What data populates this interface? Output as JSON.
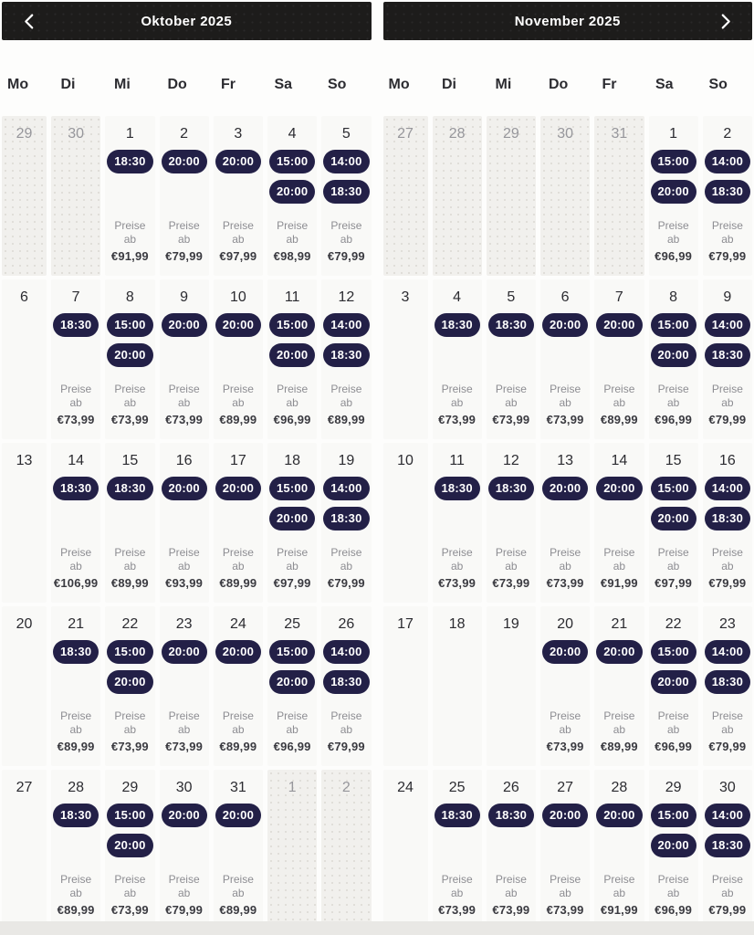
{
  "price_label": "Preise ab",
  "colors": {
    "page_bg": "#fdfdfc",
    "header_bg": "#1d1c1b",
    "header_text": "#ffffff",
    "cell_bg": "#f9f9f7",
    "cell_muted_bg": "#f1f0ed",
    "dot_color": "#dedcd7",
    "pill_bg": "#232047",
    "pill_text": "#ffffff",
    "day_text": "#2c2c31",
    "day_muted_text": "#96969b",
    "price_label_text": "#8d8d92",
    "price_text": "#3a3a40",
    "footer_strip": "#e9e8e5"
  },
  "months": [
    {
      "title": "Oktober 2025",
      "nav": "prev",
      "weekdays": [
        "Mo",
        "Di",
        "Mi",
        "Do",
        "Fr",
        "Sa",
        "So"
      ],
      "weeks": [
        [
          {
            "day": "29",
            "muted": true
          },
          {
            "day": "30",
            "muted": true
          },
          {
            "day": "1",
            "times": [
              "18:30"
            ],
            "price": "€91,99"
          },
          {
            "day": "2",
            "times": [
              "20:00"
            ],
            "price": "€79,99"
          },
          {
            "day": "3",
            "times": [
              "20:00"
            ],
            "price": "€97,99"
          },
          {
            "day": "4",
            "times": [
              "15:00",
              "20:00"
            ],
            "price": "€98,99"
          },
          {
            "day": "5",
            "times": [
              "14:00",
              "18:30"
            ],
            "price": "€79,99"
          }
        ],
        [
          {
            "day": "6"
          },
          {
            "day": "7",
            "times": [
              "18:30"
            ],
            "price": "€73,99"
          },
          {
            "day": "8",
            "times": [
              "15:00",
              "20:00"
            ],
            "price": "€73,99"
          },
          {
            "day": "9",
            "times": [
              "20:00"
            ],
            "price": "€73,99"
          },
          {
            "day": "10",
            "times": [
              "20:00"
            ],
            "price": "€89,99"
          },
          {
            "day": "11",
            "times": [
              "15:00",
              "20:00"
            ],
            "price": "€96,99"
          },
          {
            "day": "12",
            "times": [
              "14:00",
              "18:30"
            ],
            "price": "€89,99"
          }
        ],
        [
          {
            "day": "13"
          },
          {
            "day": "14",
            "times": [
              "18:30"
            ],
            "price": "€106,99"
          },
          {
            "day": "15",
            "times": [
              "18:30"
            ],
            "price": "€89,99"
          },
          {
            "day": "16",
            "times": [
              "20:00"
            ],
            "price": "€93,99"
          },
          {
            "day": "17",
            "times": [
              "20:00"
            ],
            "price": "€89,99"
          },
          {
            "day": "18",
            "times": [
              "15:00",
              "20:00"
            ],
            "price": "€97,99"
          },
          {
            "day": "19",
            "times": [
              "14:00",
              "18:30"
            ],
            "price": "€79,99"
          }
        ],
        [
          {
            "day": "20"
          },
          {
            "day": "21",
            "times": [
              "18:30"
            ],
            "price": "€89,99"
          },
          {
            "day": "22",
            "times": [
              "15:00",
              "20:00"
            ],
            "price": "€73,99"
          },
          {
            "day": "23",
            "times": [
              "20:00"
            ],
            "price": "€73,99"
          },
          {
            "day": "24",
            "times": [
              "20:00"
            ],
            "price": "€89,99"
          },
          {
            "day": "25",
            "times": [
              "15:00",
              "20:00"
            ],
            "price": "€96,99"
          },
          {
            "day": "26",
            "times": [
              "14:00",
              "18:30"
            ],
            "price": "€79,99"
          }
        ],
        [
          {
            "day": "27"
          },
          {
            "day": "28",
            "times": [
              "18:30"
            ],
            "price": "€89,99"
          },
          {
            "day": "29",
            "times": [
              "15:00",
              "20:00"
            ],
            "price": "€73,99"
          },
          {
            "day": "30",
            "times": [
              "20:00"
            ],
            "price": "€79,99"
          },
          {
            "day": "31",
            "times": [
              "20:00"
            ],
            "price": "€89,99"
          },
          {
            "day": "1",
            "muted": true
          },
          {
            "day": "2",
            "muted": true
          }
        ]
      ]
    },
    {
      "title": "November 2025",
      "nav": "next",
      "weekdays": [
        "Mo",
        "Di",
        "Mi",
        "Do",
        "Fr",
        "Sa",
        "So"
      ],
      "weeks": [
        [
          {
            "day": "27",
            "muted": true
          },
          {
            "day": "28",
            "muted": true
          },
          {
            "day": "29",
            "muted": true
          },
          {
            "day": "30",
            "muted": true
          },
          {
            "day": "31",
            "muted": true
          },
          {
            "day": "1",
            "times": [
              "15:00",
              "20:00"
            ],
            "price": "€96,99"
          },
          {
            "day": "2",
            "times": [
              "14:00",
              "18:30"
            ],
            "price": "€79,99"
          }
        ],
        [
          {
            "day": "3"
          },
          {
            "day": "4",
            "times": [
              "18:30"
            ],
            "price": "€73,99"
          },
          {
            "day": "5",
            "times": [
              "18:30"
            ],
            "price": "€73,99"
          },
          {
            "day": "6",
            "times": [
              "20:00"
            ],
            "price": "€73,99"
          },
          {
            "day": "7",
            "times": [
              "20:00"
            ],
            "price": "€89,99"
          },
          {
            "day": "8",
            "times": [
              "15:00",
              "20:00"
            ],
            "price": "€96,99"
          },
          {
            "day": "9",
            "times": [
              "14:00",
              "18:30"
            ],
            "price": "€79,99"
          }
        ],
        [
          {
            "day": "10"
          },
          {
            "day": "11",
            "times": [
              "18:30"
            ],
            "price": "€73,99"
          },
          {
            "day": "12",
            "times": [
              "18:30"
            ],
            "price": "€73,99"
          },
          {
            "day": "13",
            "times": [
              "20:00"
            ],
            "price": "€73,99"
          },
          {
            "day": "14",
            "times": [
              "20:00"
            ],
            "price": "€91,99"
          },
          {
            "day": "15",
            "times": [
              "15:00",
              "20:00"
            ],
            "price": "€97,99"
          },
          {
            "day": "16",
            "times": [
              "14:00",
              "18:30"
            ],
            "price": "€79,99"
          }
        ],
        [
          {
            "day": "17"
          },
          {
            "day": "18"
          },
          {
            "day": "19"
          },
          {
            "day": "20",
            "times": [
              "20:00"
            ],
            "price": "€73,99"
          },
          {
            "day": "21",
            "times": [
              "20:00"
            ],
            "price": "€89,99"
          },
          {
            "day": "22",
            "times": [
              "15:00",
              "20:00"
            ],
            "price": "€96,99"
          },
          {
            "day": "23",
            "times": [
              "14:00",
              "18:30"
            ],
            "price": "€79,99"
          }
        ],
        [
          {
            "day": "24"
          },
          {
            "day": "25",
            "times": [
              "18:30"
            ],
            "price": "€73,99"
          },
          {
            "day": "26",
            "times": [
              "18:30"
            ],
            "price": "€73,99"
          },
          {
            "day": "27",
            "times": [
              "20:00"
            ],
            "price": "€73,99"
          },
          {
            "day": "28",
            "times": [
              "20:00"
            ],
            "price": "€91,99"
          },
          {
            "day": "29",
            "times": [
              "15:00",
              "20:00"
            ],
            "price": "€96,99"
          },
          {
            "day": "30",
            "times": [
              "14:00",
              "18:30"
            ],
            "price": "€79,99"
          }
        ]
      ]
    }
  ]
}
